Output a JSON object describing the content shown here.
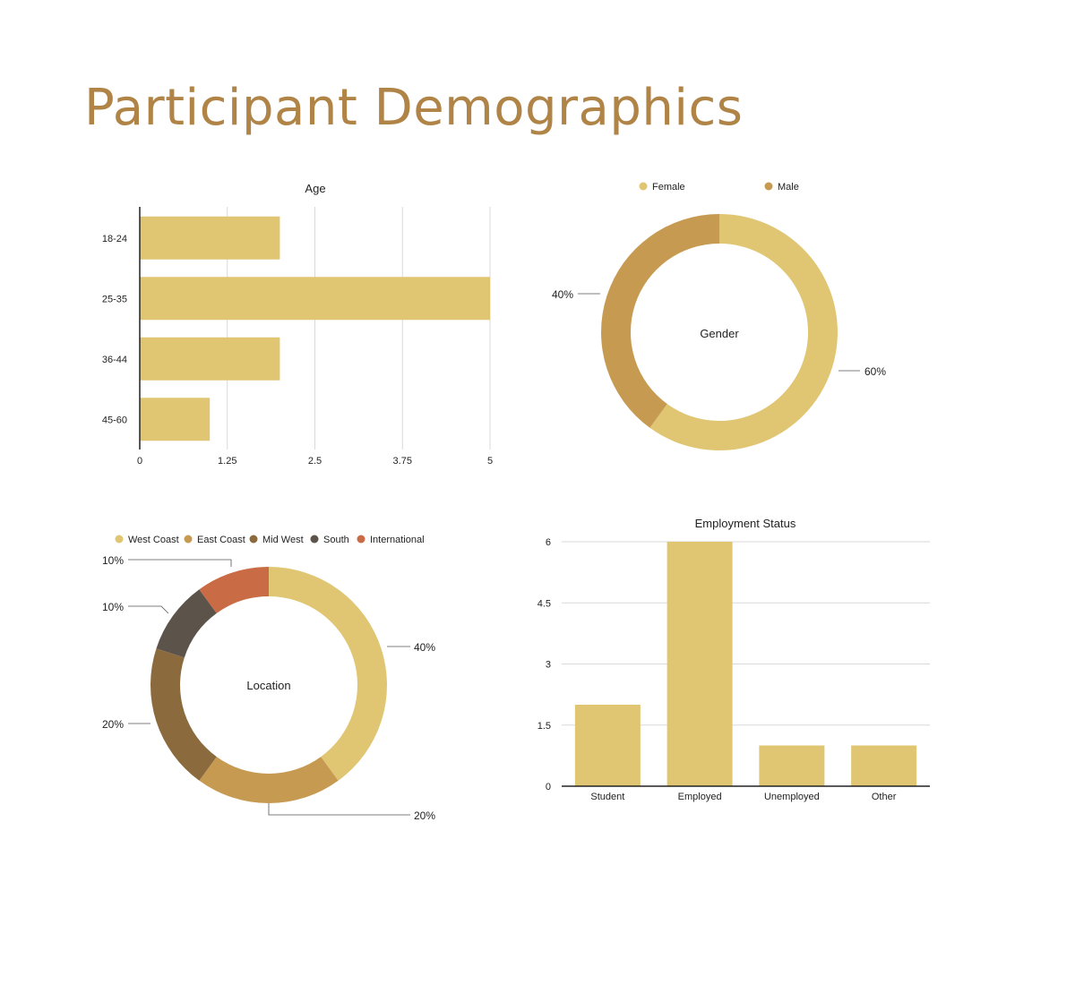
{
  "page": {
    "title": "Participant Demographics"
  },
  "colors": {
    "title": "#b08447",
    "bar": "#e0c673",
    "grid": "#d9d9d9",
    "axis": "#222222"
  },
  "chart_data": [
    {
      "id": "age",
      "type": "bar",
      "orientation": "horizontal",
      "title": "Age",
      "categories": [
        "18-24",
        "25-35",
        "36-44",
        "45-60"
      ],
      "values": [
        2,
        5,
        2,
        1
      ],
      "xlim": [
        0,
        5
      ],
      "xticks": [
        "0",
        "1.25",
        "2.5",
        "3.75",
        "5"
      ],
      "grid": true,
      "color": "#e0c673"
    },
    {
      "id": "gender",
      "type": "pie",
      "style": "donut",
      "center_label": "Gender",
      "legend_position": "top",
      "slices": [
        {
          "name": "Female",
          "value": 60,
          "label": "60%",
          "color": "#e0c673"
        },
        {
          "name": "Male",
          "value": 40,
          "label": "40%",
          "color": "#c79a52"
        }
      ]
    },
    {
      "id": "location",
      "type": "pie",
      "style": "donut",
      "center_label": "Location",
      "legend_position": "top",
      "slices": [
        {
          "name": "West Coast",
          "value": 40,
          "label": "40%",
          "color": "#e0c673"
        },
        {
          "name": "East Coast",
          "value": 20,
          "label": "20%",
          "color": "#c79a52"
        },
        {
          "name": "Mid West",
          "value": 20,
          "label": "20%",
          "color": "#8b6b3e"
        },
        {
          "name": "South",
          "value": 10,
          "label": "10%",
          "color": "#5c544a"
        },
        {
          "name": "International",
          "value": 10,
          "label": "10%",
          "color": "#c96b44"
        }
      ]
    },
    {
      "id": "employment",
      "type": "bar",
      "orientation": "vertical",
      "title": "Employment Status",
      "categories": [
        "Student",
        "Employed",
        "Unemployed",
        "Other"
      ],
      "values": [
        2,
        6,
        1,
        1
      ],
      "ylim": [
        0,
        6
      ],
      "yticks": [
        "0",
        "1.5",
        "3",
        "4.5",
        "6"
      ],
      "grid": true,
      "color": "#e0c673"
    }
  ]
}
